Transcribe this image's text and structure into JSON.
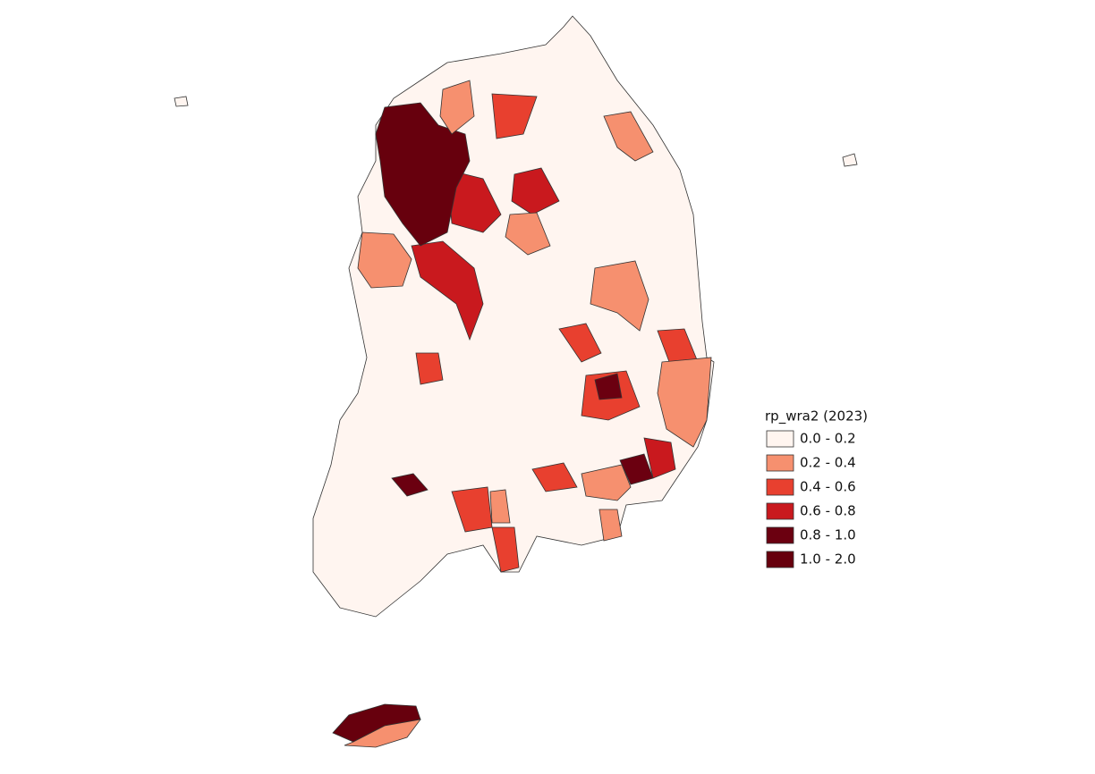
{
  "legend": {
    "title": "rp_wra2 (2023)",
    "items": [
      {
        "label": "0.0 - 0.2",
        "color": "#fff5f0"
      },
      {
        "label": "0.2 - 0.4",
        "color": "#f6906f"
      },
      {
        "label": "0.4 - 0.6",
        "color": "#e8402f"
      },
      {
        "label": "0.6 - 0.8",
        "color": "#c9191e"
      },
      {
        "label": "0.8 - 1.0",
        "color": "#6b0010"
      },
      {
        "label": "1.0 - 2.0",
        "color": "#67000d"
      }
    ]
  }
}
